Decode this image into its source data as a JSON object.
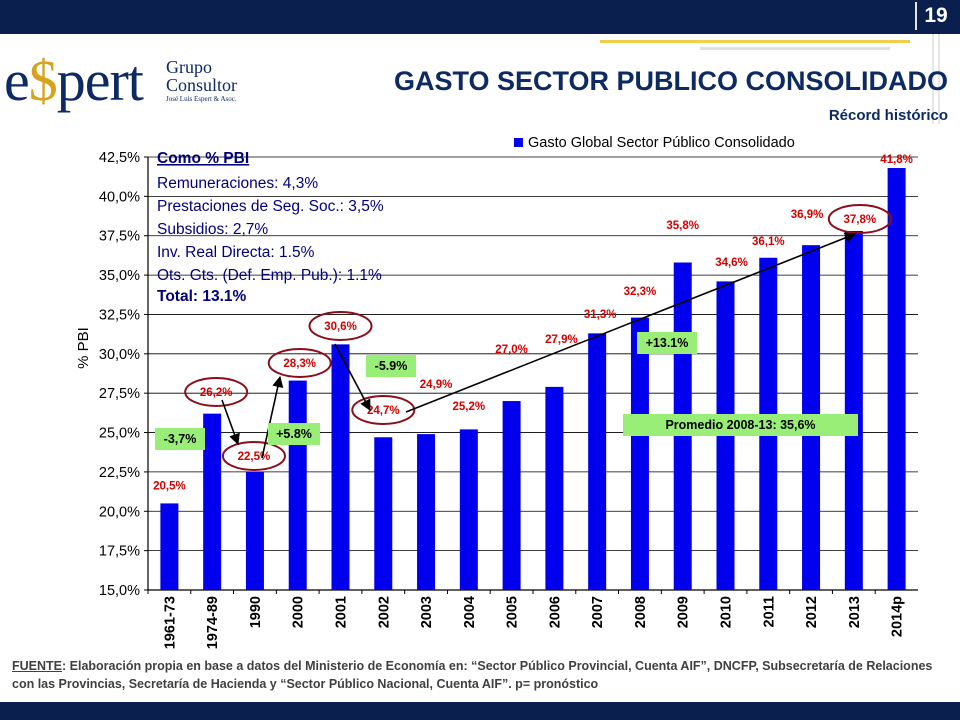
{
  "page_number": "19",
  "logo": {
    "word_left": "e",
    "word_mid": "$",
    "word_right": "pert",
    "grupo": "Grupo",
    "consultor": "Consultor",
    "tagline": "José Luis Espert & Asoc."
  },
  "header": {
    "title": "GASTO SECTOR PUBLICO CONSOLIDADO",
    "subtitle": "Récord histórico"
  },
  "chart_data": {
    "type": "bar",
    "ylabel": "% PBI",
    "ylim": [
      15.0,
      42.5
    ],
    "ytick_step": 2.5,
    "ytick_labels": [
      "15,0%",
      "17,5%",
      "20,0%",
      "22,5%",
      "25,0%",
      "27,5%",
      "30,0%",
      "32,5%",
      "35,0%",
      "37,5%",
      "40,0%",
      "42,5%"
    ],
    "grid": true,
    "legend": "top-right",
    "categories": [
      "1961-73",
      "1974-89",
      "1990",
      "2000",
      "2001",
      "2002",
      "2003",
      "2004",
      "2005",
      "2006",
      "2007",
      "2008",
      "2009",
      "2010",
      "2011",
      "2012",
      "2013",
      "2014p"
    ],
    "series": [
      {
        "name": "Gasto Global Sector Público Consolidado",
        "color": "#0000ee",
        "values": [
          20.5,
          26.2,
          22.5,
          28.3,
          30.6,
          24.7,
          24.9,
          25.2,
          27.0,
          27.9,
          31.3,
          32.3,
          35.8,
          34.6,
          36.1,
          36.9,
          37.8,
          41.8
        ],
        "value_labels": [
          "20,5%",
          "26,2%",
          "22,5%",
          "28,3%",
          "30,6%",
          "24,7%",
          "24,9%",
          "25,2%",
          "27,0%",
          "27,9%",
          "31,3%",
          "32,3%",
          "35,8%",
          "34,6%",
          "36,1%",
          "36,9%",
          "37,8%",
          "41,8%"
        ]
      }
    ],
    "circled_categories": [
      "1974-89",
      "1990",
      "2000",
      "2001",
      "2002",
      "2013"
    ],
    "label_color": "#d40000",
    "annotations": [
      {
        "text": "-3,7%",
        "background": "#99ee77"
      },
      {
        "text": "+5.8%",
        "background": "#99ee77"
      },
      {
        "text": "-5.9%",
        "background": "#99ee77"
      },
      {
        "text": "+13.1%",
        "background": "#99ee77"
      },
      {
        "text": "Promedio 2008-13: 35,6%",
        "background": "#99ee77"
      }
    ],
    "composition": {
      "heading": "Como % PBI",
      "lines": [
        "Remuneraciones: 4,3%",
        "Prestaciones de Seg. Soc.: 3,5%",
        "Subsidios: 2,7%",
        "Inv. Real Directa: 1.5%",
        "Ots. Gts. (Def. Emp. Pub.): 1.1%"
      ],
      "total": "Total: 13.1%"
    }
  },
  "footer": {
    "source_label": "FUENTE",
    "source_text": ": Elaboración propia en base a datos del Ministerio de Economía en: “Sector Público Provincial, Cuenta AIF”, DNCFP, Subsecretaría de Relaciones con las Provincias, Secretaría de Hacienda y  “Sector Público Nacional, Cuenta AIF”.   p= pronóstico"
  }
}
